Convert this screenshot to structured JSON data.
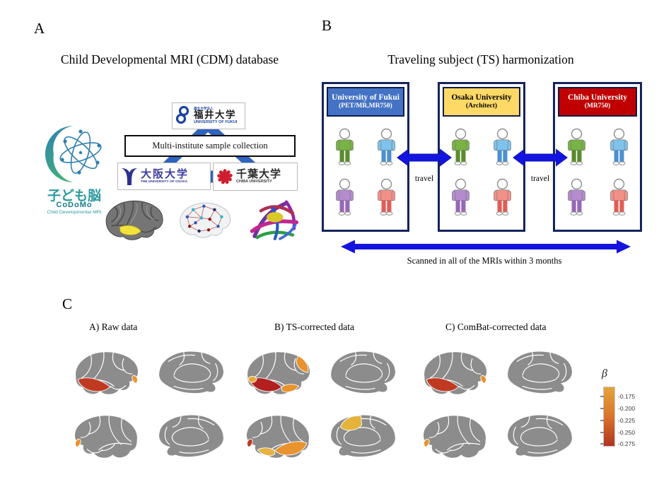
{
  "panelA": {
    "label": "A",
    "title": "Child Developmental MRI (CDM) database",
    "connector_color": "#2e63be",
    "codomo": {
      "kanji": "子ども脳",
      "name": "CoDoMo",
      "subtitle": "Child Developmental MRI",
      "color1": "#2f7fb5",
      "color2": "#3fae7a",
      "atom_color": "#2e7fb0",
      "text_color": "#2e9aa0",
      "name_color": "#157a8a"
    },
    "fukui": {
      "small": "国立大学法人",
      "kanji": "福井大学",
      "en": "UNIVERSITY OF FUKUI",
      "color": "#1c44a0"
    },
    "collection_box": "Multi-institute sample collection",
    "osaka": {
      "kanji": "大阪大学",
      "en": "THE UNIVERSITY OF OSAKA",
      "color": "#2d3191",
      "kanji_color": "#3d3d9e"
    },
    "chiba": {
      "kanji": "千葉大学",
      "en": "CHIBA UNIVERSITY",
      "color": "#cf1f2f",
      "kanji_color": "#2b2b2b"
    }
  },
  "panelB": {
    "label": "B",
    "title": "Traveling subject (TS) harmonization",
    "arrow_color": "#1414e0",
    "travel_label": "travel",
    "bottom_caption": "Scanned in all of the MRIs within 3 months",
    "sites": [
      {
        "name": "University of Fukui",
        "scanner": "(PET/MR,MR750)",
        "header_bg": "#4472c4",
        "text_color": "#ffffff"
      },
      {
        "name": "Osaka University",
        "scanner": "(Architect)",
        "header_bg": "#ffd966",
        "text_color": "#000000"
      },
      {
        "name": "Chiba University",
        "scanner": "(MR750)",
        "header_bg": "#c00000",
        "text_color": "#ffffff"
      }
    ],
    "person_colors": [
      {
        "shirt": "#79b344",
        "pants": "#5a8a2e"
      },
      {
        "shirt": "#7ec3ec",
        "pants": "#4a90d0"
      },
      {
        "shirt": "#b48cce",
        "pants": "#9667b8"
      },
      {
        "shirt": "#f29088",
        "pants": "#e25d55"
      }
    ]
  },
  "panelC": {
    "label": "C",
    "brain_gray": "#8c8c8c",
    "groups": [
      {
        "label": "A) Raw data",
        "views": [
          {
            "type": "lateral",
            "flip": false,
            "highlights": [
              {
                "region": "temporal-strip",
                "color": "#c03a22"
              },
              {
                "region": "occipital-wedge",
                "color": "#e8932e"
              }
            ]
          },
          {
            "type": "medial",
            "flip": false,
            "highlights": []
          },
          {
            "type": "lateral",
            "flip": true,
            "highlights": [
              {
                "region": "occipital-wedge",
                "color": "#e8932e"
              }
            ]
          },
          {
            "type": "medial",
            "flip": true,
            "highlights": []
          }
        ]
      },
      {
        "label": "B) TS-corrected data",
        "views": [
          {
            "type": "lateral",
            "flip": false,
            "highlights": [
              {
                "region": "temporal-strip",
                "color": "#b2211f"
              },
              {
                "region": "lateral-occipital",
                "color": "#e8932e"
              },
              {
                "region": "inferior-temporal",
                "color": "#e8932e"
              },
              {
                "region": "temporal-pole",
                "color": "#e8a93c"
              }
            ]
          },
          {
            "type": "medial",
            "flip": false,
            "highlights": []
          },
          {
            "type": "lateral",
            "flip": true,
            "highlights": [
              {
                "region": "temporal-strip",
                "color": "#e8932e"
              },
              {
                "region": "inferior-temporal",
                "color": "#e6b244"
              },
              {
                "region": "occipital-wedge",
                "color": "#c03a22"
              }
            ]
          },
          {
            "type": "medial",
            "flip": true,
            "highlights": [
              {
                "region": "parietal",
                "color": "#e4b33c"
              }
            ]
          }
        ]
      },
      {
        "label": "C) ComBat-corrected data",
        "views": [
          {
            "type": "lateral",
            "flip": false,
            "highlights": [
              {
                "region": "temporal-strip",
                "color": "#c03a22"
              },
              {
                "region": "occipital-wedge",
                "color": "#e8932e"
              }
            ]
          },
          {
            "type": "medial",
            "flip": false,
            "highlights": []
          },
          {
            "type": "lateral",
            "flip": true,
            "highlights": [
              {
                "region": "occipital-wedge",
                "color": "#e8932e"
              }
            ]
          },
          {
            "type": "medial",
            "flip": true,
            "highlights": []
          }
        ]
      }
    ],
    "colorbar": {
      "title": "β",
      "ticks": [
        "-0.175",
        "-0.200",
        "-0.225",
        "-0.250",
        "-0.275"
      ],
      "top_color": "#e5a33c",
      "mid_color": "#d8742c",
      "bottom_color": "#b23420"
    }
  }
}
